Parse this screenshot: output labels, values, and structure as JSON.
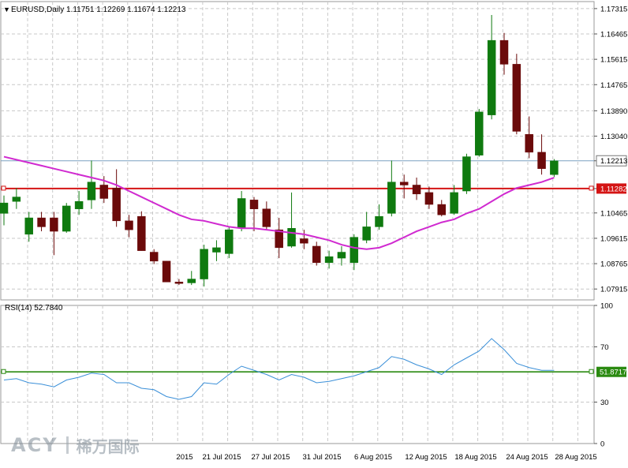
{
  "symbol_header": "EURUSD,Daily  1.11751 1.12269 1.11674 1.12213",
  "rsi_header": "RSI(14) 52.7840",
  "colors": {
    "bull": "#0f7a0f",
    "bear": "#6b0a0a",
    "ma": "#d02ad0",
    "hline": "#d41414",
    "current_line": "#7aa0c0",
    "rsi_line": "#3a8fd8",
    "rsi_level": "#2a8a10",
    "grid": "#c8c8c8"
  },
  "watermark": {
    "brand": "ACY",
    "brand_cn": "稀万国际"
  },
  "chart_data": [
    {
      "type": "candlestick",
      "name": "EURUSD,Daily",
      "y_ticks": [
        "1.17315",
        "1.16465",
        "1.15615",
        "1.14765",
        "1.13890",
        "1.13040",
        "1.12213",
        "1.11282",
        "1.10465",
        "1.09615",
        "1.08765",
        "1.07915"
      ],
      "ylim": [
        1.0755,
        1.1755
      ],
      "x_labels": [
        "2015",
        "21 Jul 2015",
        "27 Jul 2015",
        "31 Jul 2015",
        "6 Aug 2015",
        "12 Aug 2015",
        "18 Aug 2015",
        "24 Aug 2015",
        "28 Aug 2015"
      ],
      "current_price": 1.12213,
      "hline": {
        "value": 1.11282,
        "label": "1.11282"
      },
      "candles": [
        {
          "o": 1.1045,
          "h": 1.1105,
          "l": 1.1005,
          "c": 1.108
        },
        {
          "o": 1.1085,
          "h": 1.113,
          "l": 1.106,
          "c": 1.11
        },
        {
          "o": 1.0975,
          "h": 1.105,
          "l": 1.095,
          "c": 1.103
        },
        {
          "o": 1.103,
          "h": 1.105,
          "l": 1.0985,
          "c": 1.1
        },
        {
          "o": 1.103,
          "h": 1.105,
          "l": 1.0905,
          "c": 1.0985
        },
        {
          "o": 1.0985,
          "h": 1.108,
          "l": 1.098,
          "c": 1.107
        },
        {
          "o": 1.106,
          "h": 1.112,
          "l": 1.104,
          "c": 1.1085
        },
        {
          "o": 1.109,
          "h": 1.1222,
          "l": 1.106,
          "c": 1.115
        },
        {
          "o": 1.114,
          "h": 1.117,
          "l": 1.108,
          "c": 1.1095
        },
        {
          "o": 1.113,
          "h": 1.1193,
          "l": 1.1,
          "c": 1.102
        },
        {
          "o": 1.102,
          "h": 1.104,
          "l": 1.0965,
          "c": 1.099
        },
        {
          "o": 1.1035,
          "h": 1.1052,
          "l": 1.092,
          "c": 1.092
        },
        {
          "o": 1.0915,
          "h": 1.0925,
          "l": 1.0875,
          "c": 1.0885
        },
        {
          "o": 1.0885,
          "h": 1.0885,
          "l": 1.0815,
          "c": 1.0815
        },
        {
          "o": 1.0815,
          "h": 1.0825,
          "l": 1.0805,
          "c": 1.081
        },
        {
          "o": 1.0812,
          "h": 1.0852,
          "l": 1.0805,
          "c": 1.0825
        },
        {
          "o": 1.0825,
          "h": 1.094,
          "l": 1.08,
          "c": 1.0925
        },
        {
          "o": 1.0915,
          "h": 1.0955,
          "l": 1.0885,
          "c": 1.093
        },
        {
          "o": 1.091,
          "h": 1.1,
          "l": 1.0895,
          "c": 1.099
        },
        {
          "o": 1.0995,
          "h": 1.112,
          "l": 1.0985,
          "c": 1.1095
        },
        {
          "o": 1.109,
          "h": 1.11,
          "l": 1.0985,
          "c": 1.106
        },
        {
          "o": 1.106,
          "h": 1.1085,
          "l": 1.099,
          "c": 1.1
        },
        {
          "o": 1.099,
          "h": 1.103,
          "l": 1.0895,
          "c": 1.093
        },
        {
          "o": 1.0935,
          "h": 1.1115,
          "l": 1.093,
          "c": 1.0995
        },
        {
          "o": 1.096,
          "h": 1.099,
          "l": 1.0925,
          "c": 1.0945
        },
        {
          "o": 1.0935,
          "h": 1.095,
          "l": 1.087,
          "c": 1.088
        },
        {
          "o": 1.088,
          "h": 1.092,
          "l": 1.086,
          "c": 1.09
        },
        {
          "o": 1.0895,
          "h": 1.0935,
          "l": 1.087,
          "c": 1.0915
        },
        {
          "o": 1.088,
          "h": 1.0975,
          "l": 1.0855,
          "c": 1.0965
        },
        {
          "o": 1.0955,
          "h": 1.105,
          "l": 1.0945,
          "c": 1.1
        },
        {
          "o": 1.1,
          "h": 1.1075,
          "l": 1.099,
          "c": 1.1035
        },
        {
          "o": 1.1045,
          "h": 1.1222,
          "l": 1.1035,
          "c": 1.115
        },
        {
          "o": 1.115,
          "h": 1.1175,
          "l": 1.1095,
          "c": 1.114
        },
        {
          "o": 1.114,
          "h": 1.1165,
          "l": 1.109,
          "c": 1.111
        },
        {
          "o": 1.1115,
          "h": 1.1135,
          "l": 1.106,
          "c": 1.1075
        },
        {
          "o": 1.1075,
          "h": 1.109,
          "l": 1.1035,
          "c": 1.104
        },
        {
          "o": 1.1045,
          "h": 1.114,
          "l": 1.104,
          "c": 1.1115
        },
        {
          "o": 1.112,
          "h": 1.1245,
          "l": 1.111,
          "c": 1.1235
        },
        {
          "o": 1.124,
          "h": 1.1395,
          "l": 1.1235,
          "c": 1.1385
        },
        {
          "o": 1.1375,
          "h": 1.171,
          "l": 1.136,
          "c": 1.1625
        },
        {
          "o": 1.1625,
          "h": 1.165,
          "l": 1.151,
          "c": 1.1545
        },
        {
          "o": 1.1545,
          "h": 1.158,
          "l": 1.131,
          "c": 1.132
        },
        {
          "o": 1.131,
          "h": 1.137,
          "l": 1.123,
          "c": 1.125
        },
        {
          "o": 1.125,
          "h": 1.131,
          "l": 1.1175,
          "c": 1.1195
        },
        {
          "o": 1.1175,
          "h": 1.1227,
          "l": 1.1167,
          "c": 1.1221
        }
      ],
      "ma": [
        1.1235,
        1.1225,
        1.1215,
        1.1205,
        1.1195,
        1.1185,
        1.1175,
        1.1165,
        1.1155,
        1.114,
        1.112,
        1.11,
        1.108,
        1.106,
        1.104,
        1.1025,
        1.102,
        1.101,
        1.1,
        1.0995,
        1.0995,
        1.099,
        1.0985,
        1.098,
        1.0975,
        1.0965,
        1.0955,
        1.094,
        1.093,
        1.0925,
        1.093,
        1.0945,
        1.0965,
        1.0985,
        1.1,
        1.1015,
        1.1025,
        1.1045,
        1.106,
        1.1085,
        1.111,
        1.113,
        1.114,
        1.115,
        1.1165
      ]
    },
    {
      "type": "line",
      "name": "RSI(14)",
      "y_ticks": [
        "100",
        "70",
        "51.8717",
        "30",
        "0"
      ],
      "ylim": [
        0,
        100
      ],
      "level": 51.8717,
      "values": [
        46,
        47,
        44,
        43,
        41,
        46,
        48,
        51,
        50,
        44,
        44,
        40,
        39,
        34,
        32,
        34,
        44,
        43,
        50,
        56,
        53,
        50,
        46,
        50,
        48,
        44,
        45,
        47,
        49,
        52,
        55,
        63,
        61,
        57,
        54,
        50,
        57,
        62,
        67,
        76,
        68,
        58,
        55,
        53,
        53
      ]
    }
  ]
}
